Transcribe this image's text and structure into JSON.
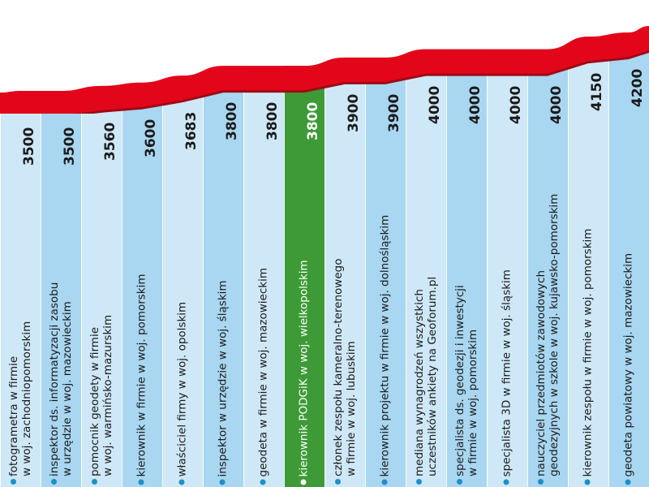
{
  "colors": {
    "band": "#e3061a",
    "band_shadow": "#9e0a14",
    "col_light": "#cfe8f7",
    "col_dark": "#a9d6f0",
    "highlight": "#3d9a36",
    "bullet": "#1e8fc8"
  },
  "chart_data": {
    "type": "bar",
    "orientation": "columns",
    "highlight_index": 7,
    "categories": [
      [
        "fotogrametra w firmie",
        "w woj. zachodniopomorskim"
      ],
      [
        "inspektor ds. informatyzacji zasobu",
        "w urzędzie w woj. mazowieckim"
      ],
      [
        "pomocnik geodety w firmie",
        "w woj. warmińsko-mazurskim"
      ],
      [
        "kierownik w firmie w woj. pomorskim",
        ""
      ],
      [
        "właściciel firmy w woj. opolskim",
        ""
      ],
      [
        "inspektor w urzędzie w woj. śląskim",
        ""
      ],
      [
        "geodeta w firmie w woj. mazowieckim",
        ""
      ],
      [
        "kierownik PODGiK w woj. wielkopolskim",
        ""
      ],
      [
        "członek zespołu kameralno-terenowego",
        "w firmie w woj. lubuskim"
      ],
      [
        "kierownik projektu w firmie w woj. dolnośląskim",
        ""
      ],
      [
        "mediana wynagrodzeń wszystkich",
        "uczestników ankiety na Geoforum.pl"
      ],
      [
        "specjalista ds. geodezji i inwestycji",
        "w firmie w woj. pomorskim"
      ],
      [
        "specjalista 3D w firmie w woj. śląskim",
        ""
      ],
      [
        "nauczyciel przedmiotów zawodowych",
        "geodezyjnych w szkole w woj. kujawsko-pomorskim"
      ],
      [
        "kierownik zespołu w firmie w woj. pomorskim",
        ""
      ],
      [
        "geodeta powiatowy w woj. mazowieckim",
        ""
      ]
    ],
    "value_labels": [
      "3500",
      "3500",
      "3560",
      "3600",
      "3683",
      "3800",
      "3800",
      "3800",
      "3900",
      "3900",
      "4000",
      "4000",
      "4000",
      "4000",
      "4150",
      "4200"
    ],
    "values": [
      3500,
      3500,
      3560,
      3600,
      3683,
      3800,
      3800,
      3800,
      3900,
      3900,
      4000,
      4000,
      4000,
      4000,
      4150,
      4200
    ]
  }
}
